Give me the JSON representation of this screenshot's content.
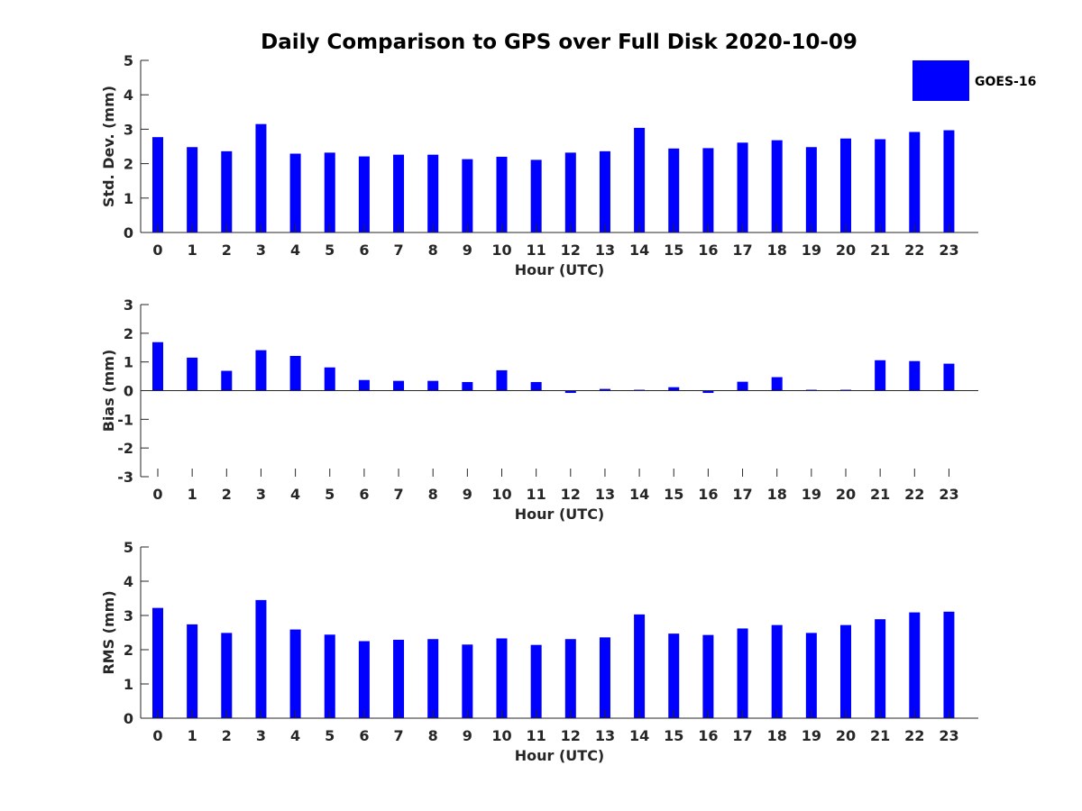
{
  "figure_title": "Daily Comparison to GPS over Full Disk 2020-10-09",
  "legend": {
    "label": "GOES-16",
    "color": "#0000ff"
  },
  "chart_data": [
    {
      "type": "bar",
      "id": "std",
      "ylabel": "Std. Dev. (mm)",
      "xlabel": "Hour (UTC)",
      "ylim": [
        0,
        5
      ],
      "yticks": [
        0,
        1,
        2,
        3,
        4,
        5
      ],
      "categories": [
        "0",
        "1",
        "2",
        "3",
        "4",
        "5",
        "6",
        "7",
        "8",
        "9",
        "10",
        "11",
        "12",
        "13",
        "14",
        "15",
        "16",
        "17",
        "18",
        "19",
        "20",
        "21",
        "22",
        "23"
      ],
      "series": [
        {
          "name": "GOES-16",
          "values": [
            2.77,
            2.48,
            2.36,
            3.15,
            2.29,
            2.32,
            2.21,
            2.26,
            2.26,
            2.13,
            2.2,
            2.11,
            2.32,
            2.36,
            3.04,
            2.44,
            2.45,
            2.61,
            2.68,
            2.48,
            2.73,
            2.71,
            2.92,
            2.97
          ]
        }
      ]
    },
    {
      "type": "bar",
      "id": "bias",
      "ylabel": "Bias (mm)",
      "xlabel": "Hour (UTC)",
      "ylim": [
        -3,
        3
      ],
      "yticks": [
        -3,
        -2,
        -1,
        0,
        1,
        2,
        3
      ],
      "categories": [
        "0",
        "1",
        "2",
        "3",
        "4",
        "5",
        "6",
        "7",
        "8",
        "9",
        "10",
        "11",
        "12",
        "13",
        "14",
        "15",
        "16",
        "17",
        "18",
        "19",
        "20",
        "21",
        "22",
        "23"
      ],
      "series": [
        {
          "name": "GOES-16",
          "values": [
            1.69,
            1.15,
            0.69,
            1.41,
            1.21,
            0.81,
            0.37,
            0.34,
            0.34,
            0.3,
            0.71,
            0.3,
            -0.08,
            0.06,
            0.03,
            0.12,
            -0.08,
            0.31,
            0.47,
            0.03,
            0.03,
            1.06,
            1.03,
            0.94
          ]
        }
      ]
    },
    {
      "type": "bar",
      "id": "rms",
      "ylabel": "RMS (mm)",
      "xlabel": "Hour (UTC)",
      "ylim": [
        0,
        5
      ],
      "yticks": [
        0,
        1,
        2,
        3,
        4,
        5
      ],
      "categories": [
        "0",
        "1",
        "2",
        "3",
        "4",
        "5",
        "6",
        "7",
        "8",
        "9",
        "10",
        "11",
        "12",
        "13",
        "14",
        "15",
        "16",
        "17",
        "18",
        "19",
        "20",
        "21",
        "22",
        "23"
      ],
      "series": [
        {
          "name": "GOES-16",
          "values": [
            3.22,
            2.74,
            2.49,
            3.45,
            2.59,
            2.44,
            2.25,
            2.29,
            2.31,
            2.15,
            2.33,
            2.14,
            2.31,
            2.36,
            3.03,
            2.47,
            2.43,
            2.62,
            2.72,
            2.49,
            2.72,
            2.89,
            3.09,
            3.11
          ]
        }
      ]
    }
  ]
}
